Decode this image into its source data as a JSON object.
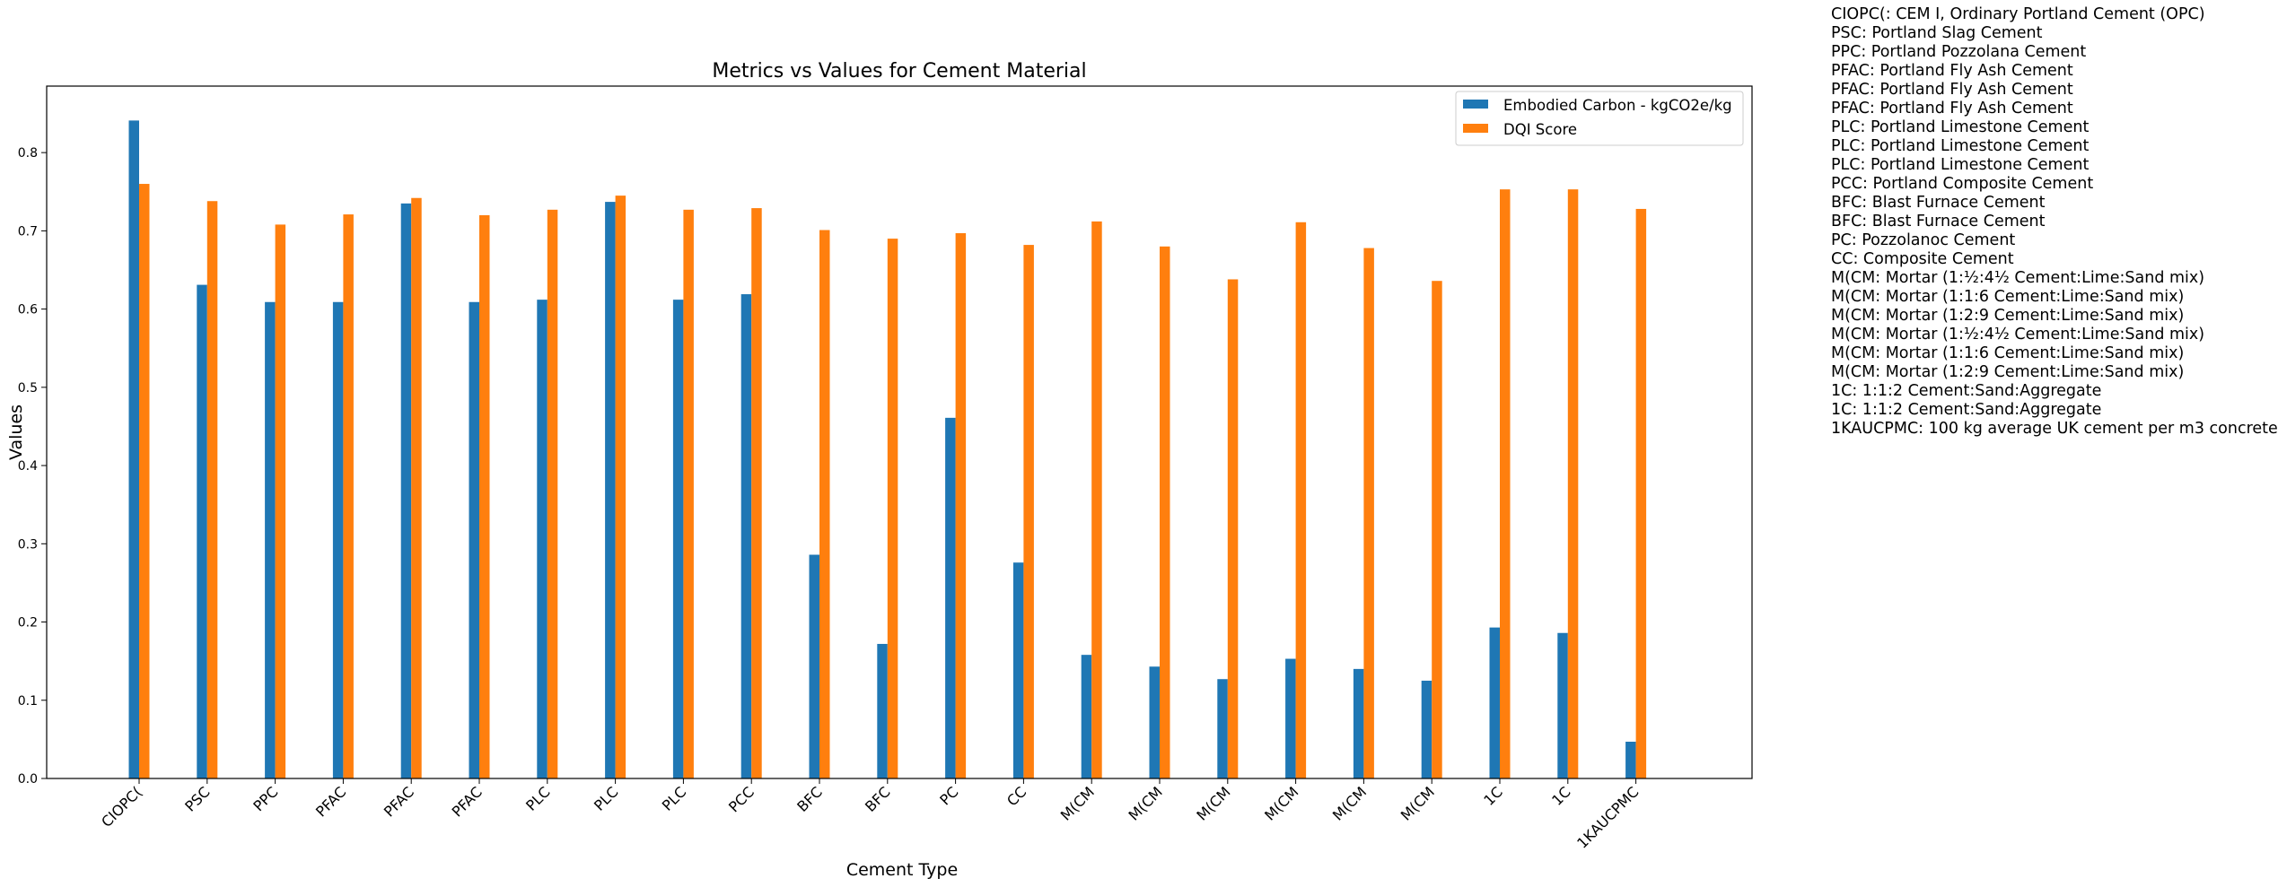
{
  "chart_data": {
    "type": "bar",
    "title": "Metrics vs Values for Cement Material",
    "xlabel": "Cement Type",
    "ylabel": "Values",
    "ylim": [
      0,
      0.885
    ],
    "yticks": [
      "0.0",
      "0.1",
      "0.2",
      "0.3",
      "0.4",
      "0.5",
      "0.6",
      "0.7",
      "0.8"
    ],
    "grid": false,
    "legend_position": "top-right",
    "categories": [
      "CIOPC(",
      "PSC",
      "PPC",
      "PFAC",
      "PFAC",
      "PFAC",
      "PLC",
      "PLC",
      "PLC",
      "PCC",
      "BFC",
      "BFC",
      "PC",
      "CC",
      "M(CM",
      "M(CM",
      "M(CM",
      "M(CM",
      "M(CM",
      "M(CM",
      "1C",
      "1C",
      "1KAUCPMC"
    ],
    "series": [
      {
        "name": "Embodied Carbon - kgCO2e/kg",
        "color": "#1f77b4",
        "values": [
          0.841,
          0.631,
          0.609,
          0.609,
          0.735,
          0.609,
          0.612,
          0.737,
          0.612,
          0.619,
          0.286,
          0.172,
          0.461,
          0.276,
          0.158,
          0.143,
          0.127,
          0.153,
          0.14,
          0.125,
          0.193,
          0.186,
          0.047
        ]
      },
      {
        "name": "DQI Score",
        "color": "#ff7f0e",
        "values": [
          0.76,
          0.738,
          0.708,
          0.721,
          0.742,
          0.72,
          0.727,
          0.745,
          0.727,
          0.729,
          0.701,
          0.69,
          0.697,
          0.682,
          0.712,
          0.68,
          0.638,
          0.711,
          0.678,
          0.636,
          0.753,
          0.753,
          0.728
        ]
      }
    ],
    "abbreviation_legend": [
      "CIOPC(: CEM I, Ordinary Portland Cement (OPC)",
      "PSC: Portland Slag Cement",
      "PPC: Portland Pozzolana Cement",
      "PFAC: Portland Fly Ash Cement",
      "PFAC: Portland Fly Ash Cement",
      "PFAC: Portland Fly Ash Cement",
      "PLC: Portland Limestone Cement",
      "PLC: Portland Limestone Cement",
      "PLC: Portland Limestone Cement",
      "PCC: Portland Composite Cement",
      "BFC: Blast Furnace Cement",
      "BFC: Blast Furnace Cement",
      "PC: Pozzolanoc Cement",
      "CC: Composite Cement",
      "M(CM: Mortar (1:½:4½ Cement:Lime:Sand mix)",
      "M(CM: Mortar (1:1:6 Cement:Lime:Sand mix)",
      "M(CM: Mortar (1:2:9 Cement:Lime:Sand mix)",
      "M(CM: Mortar (1:½:4½ Cement:Lime:Sand mix)",
      "M(CM: Mortar (1:1:6 Cement:Lime:Sand mix)",
      "M(CM: Mortar (1:2:9 Cement:Lime:Sand mix)",
      "1C: 1:1:2 Cement:Sand:Aggregate",
      "1C: 1:1:2 Cement:Sand:Aggregate",
      "1KAUCPMC: 100 kg average UK cement per m3 concrete"
    ]
  }
}
